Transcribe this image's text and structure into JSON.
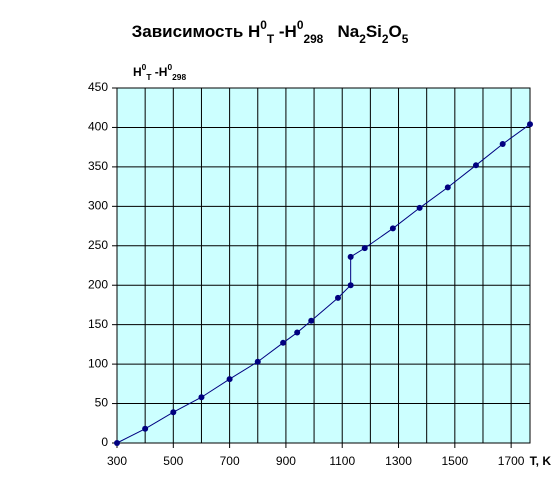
{
  "chart_data": {
    "type": "line",
    "title": [
      {
        "text": "Зависимость H"
      },
      {
        "text": "0",
        "pos": "sup"
      },
      {
        "text": "T",
        "pos": "sub"
      },
      {
        "text": " -H"
      },
      {
        "text": "0",
        "pos": "sup"
      },
      {
        "text": "298",
        "pos": "sub"
      },
      {
        "text": "   Na"
      },
      {
        "text": "2",
        "pos": "sub"
      },
      {
        "text": "Si"
      },
      {
        "text": "2",
        "pos": "sub"
      },
      {
        "text": "O"
      },
      {
        "text": "5",
        "pos": "sub"
      }
    ],
    "y_label": [
      {
        "text": "H"
      },
      {
        "text": "0",
        "pos": "sup"
      },
      {
        "text": "T",
        "pos": "sub"
      },
      {
        "text": " -H"
      },
      {
        "text": "0",
        "pos": "sup"
      },
      {
        "text": "298",
        "pos": "sub"
      }
    ],
    "x_label": "T, K",
    "x": [
      300,
      400,
      500,
      600,
      700,
      800,
      890,
      940,
      990,
      1085,
      1130,
      1130,
      1180,
      1280,
      1375,
      1475,
      1575,
      1670,
      1767
    ],
    "series": [
      {
        "color": "#000080",
        "values": [
          0,
          18,
          39,
          58,
          81,
          103,
          127,
          140,
          155,
          184,
          200,
          236,
          247,
          272,
          298,
          324,
          352,
          379,
          404
        ]
      }
    ],
    "xlim": [
      300,
      1767
    ],
    "ylim": [
      0,
      450
    ],
    "xticks": [
      300,
      500,
      700,
      900,
      1100,
      1300,
      1500,
      1700
    ],
    "xgrid_step": 100,
    "yticks": [
      0,
      50,
      100,
      150,
      200,
      250,
      300,
      350,
      400,
      450
    ],
    "grid": true,
    "plot_background": "#ccffff"
  }
}
